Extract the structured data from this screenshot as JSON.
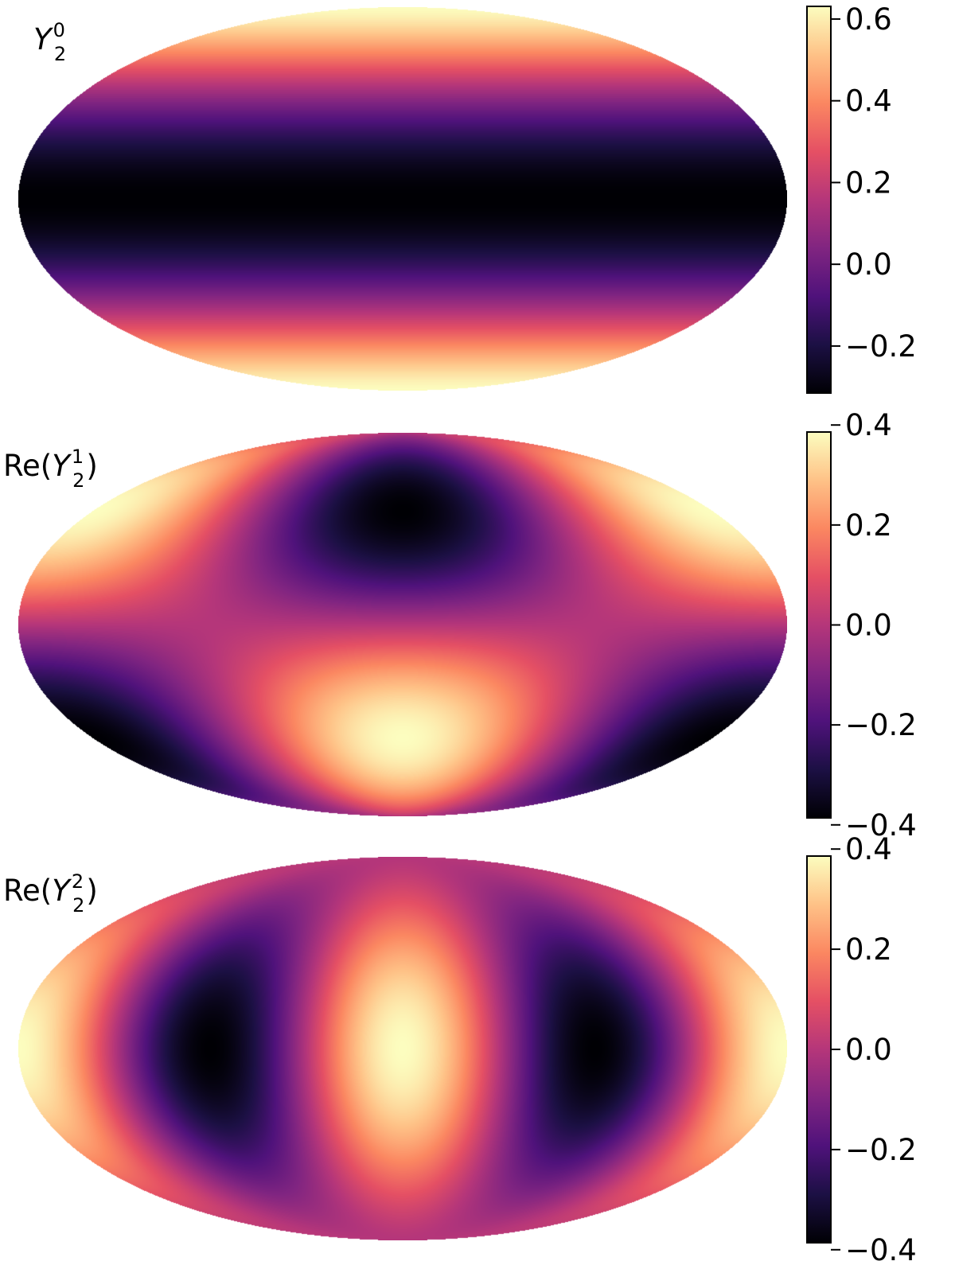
{
  "colormap": {
    "name": "magma",
    "stops": [
      "#000004",
      "#1c1044",
      "#4f127b",
      "#812581",
      "#b5367a",
      "#e55064",
      "#fb8761",
      "#fec287",
      "#fcfdbf"
    ]
  },
  "chart_data": [
    {
      "type": "heatmap",
      "projection": "mollweide",
      "label": {
        "prefix": "",
        "base": "Y",
        "sup": "0",
        "sub": "2",
        "suffix": ""
      },
      "l": 2,
      "m": 0,
      "part": "real",
      "colorbar": {
        "vmin": -0.315,
        "vmax": 0.631,
        "ticks": [
          0.6,
          0.4,
          0.2,
          0.0,
          -0.2
        ],
        "tick_labels": [
          "0.6",
          "0.4",
          "0.2",
          "0.0",
          "−0.2"
        ]
      }
    },
    {
      "type": "heatmap",
      "projection": "mollweide",
      "label": {
        "prefix": "Re(",
        "base": "Y",
        "sup": "1",
        "sub": "2",
        "suffix": ")"
      },
      "l": 2,
      "m": 1,
      "part": "real",
      "colorbar": {
        "vmin": -0.386,
        "vmax": 0.386,
        "ticks": [
          0.4,
          0.2,
          0.0,
          -0.2,
          -0.4
        ],
        "tick_labels": [
          "0.4",
          "0.2",
          "0.0",
          "−0.2",
          "−0.4"
        ]
      }
    },
    {
      "type": "heatmap",
      "projection": "mollweide",
      "label": {
        "prefix": "Re(",
        "base": "Y",
        "sup": "2",
        "sub": "2",
        "suffix": ")"
      },
      "l": 2,
      "m": 2,
      "part": "real",
      "colorbar": {
        "vmin": -0.386,
        "vmax": 0.386,
        "ticks": [
          0.4,
          0.2,
          0.0,
          -0.2,
          -0.4
        ],
        "tick_labels": [
          "0.4",
          "0.2",
          "0.0",
          "−0.2",
          "−0.4"
        ]
      }
    }
  ]
}
